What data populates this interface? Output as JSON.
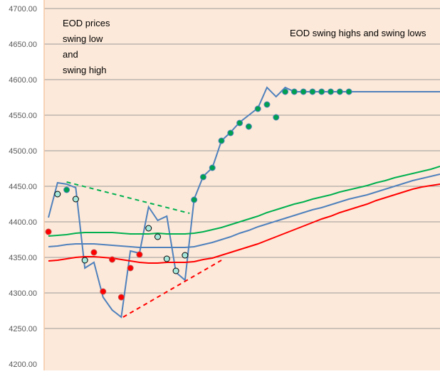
{
  "chart_data": {
    "type": "line",
    "title": "",
    "xlabel": "",
    "ylabel": "",
    "ylim": [
      4200,
      4700
    ],
    "xlim": [
      -0.47,
      43
    ],
    "yticks": [
      "4200.00",
      "4250.00",
      "4300.00",
      "4350.00",
      "4400.00",
      "4450.00",
      "4500.00",
      "4550.00",
      "4600.00",
      "4650.00",
      "4700.00"
    ],
    "grid": true,
    "background": "#FDE9D9",
    "annotations": [
      {
        "lines": [
          "EOD prices",
          "swing low",
          "and",
          "swing high"
        ]
      },
      {
        "lines": [
          "EOD swing highs and swing lows"
        ]
      }
    ],
    "series": [
      {
        "kind": "line",
        "color": "#4F81BD",
        "values": [
          4406,
          4455,
          4453,
          4448,
          4335,
          4343,
          4294,
          4276,
          4266,
          4359,
          4356,
          4421,
          4402,
          4408,
          4329,
          4318,
          4432,
          4464,
          4476,
          4514,
          4526,
          4540,
          4550,
          4560,
          4589,
          4576,
          4589,
          4583,
          4583,
          4583,
          4583,
          4583,
          4583,
          4583,
          4583,
          4583,
          4583,
          4583,
          4583,
          4583,
          4583,
          4583,
          4583,
          4583
        ]
      },
      {
        "kind": "line",
        "color": "#00B050",
        "values": [
          4380,
          4381,
          4382,
          4384,
          4385,
          4385,
          4385,
          4385,
          4384,
          4383,
          4383,
          4383,
          4384,
          4383,
          4383,
          4383,
          4384,
          4386,
          4389,
          4392,
          4396,
          4400,
          4404,
          4408,
          4413,
          4417,
          4421,
          4425,
          4428,
          4432,
          4435,
          4438,
          4442,
          4445,
          4448,
          4451,
          4455,
          4458,
          4462,
          4465,
          4468,
          4471,
          4474,
          4478
        ]
      },
      {
        "kind": "line",
        "color": "#4F81BD",
        "values": [
          4365,
          4366,
          4368,
          4369,
          4369,
          4369,
          4368,
          4367,
          4366,
          4365,
          4364,
          4364,
          4364,
          4364,
          4364,
          4364,
          4365,
          4368,
          4371,
          4375,
          4379,
          4384,
          4388,
          4393,
          4397,
          4401,
          4405,
          4409,
          4413,
          4417,
          4420,
          4424,
          4428,
          4432,
          4435,
          4438,
          4442,
          4446,
          4450,
          4454,
          4458,
          4461,
          4464,
          4467
        ]
      },
      {
        "kind": "line",
        "color": "#FF0000",
        "values": [
          4345,
          4346,
          4348,
          4350,
          4351,
          4351,
          4350,
          4349,
          4347,
          4345,
          4343,
          4342,
          4342,
          4343,
          4343,
          4343,
          4344,
          4347,
          4349,
          4353,
          4357,
          4361,
          4365,
          4369,
          4374,
          4379,
          4384,
          4389,
          4394,
          4399,
          4404,
          4408,
          4413,
          4417,
          4421,
          4425,
          4430,
          4434,
          4438,
          4442,
          4446,
          4449,
          4451,
          4453
        ]
      },
      {
        "kind": "dashed",
        "color": "#00B050",
        "points": [
          [
            2,
            4456
          ],
          [
            15.5,
            4412
          ]
        ]
      },
      {
        "kind": "dashed",
        "color": "#FF0000",
        "points": [
          [
            8.2,
            4266
          ],
          [
            19,
            4346
          ]
        ]
      },
      {
        "kind": "dots",
        "color": "#FF0000",
        "stroke": "#C0504D",
        "points": [
          [
            0,
            4386
          ],
          [
            5,
            4357
          ],
          [
            6,
            4302
          ],
          [
            7,
            4347
          ],
          [
            8,
            4294
          ],
          [
            9,
            4335
          ],
          [
            10,
            4354
          ]
        ]
      },
      {
        "kind": "dots",
        "color": "#A6E8DC",
        "stroke": "#000000",
        "points": [
          [
            1,
            4439
          ],
          [
            3,
            4432
          ],
          [
            4,
            4346
          ],
          [
            11,
            4391
          ],
          [
            12,
            4379
          ],
          [
            13,
            4348
          ],
          [
            14,
            4331
          ],
          [
            15,
            4353
          ]
        ]
      },
      {
        "kind": "dots",
        "color": "#00A050",
        "stroke": "#4F81BD",
        "points": [
          [
            2,
            4445
          ],
          [
            16,
            4431
          ],
          [
            17,
            4463
          ],
          [
            18,
            4476
          ],
          [
            19,
            4514
          ],
          [
            20,
            4525
          ],
          [
            21,
            4539
          ],
          [
            22,
            4534
          ],
          [
            23,
            4559
          ],
          [
            24,
            4565
          ],
          [
            25,
            4547
          ],
          [
            26,
            4583
          ],
          [
            27,
            4583
          ],
          [
            28,
            4583
          ],
          [
            29,
            4583
          ],
          [
            30,
            4583
          ],
          [
            31,
            4583
          ],
          [
            32,
            4583
          ],
          [
            33,
            4583
          ]
        ]
      }
    ]
  }
}
